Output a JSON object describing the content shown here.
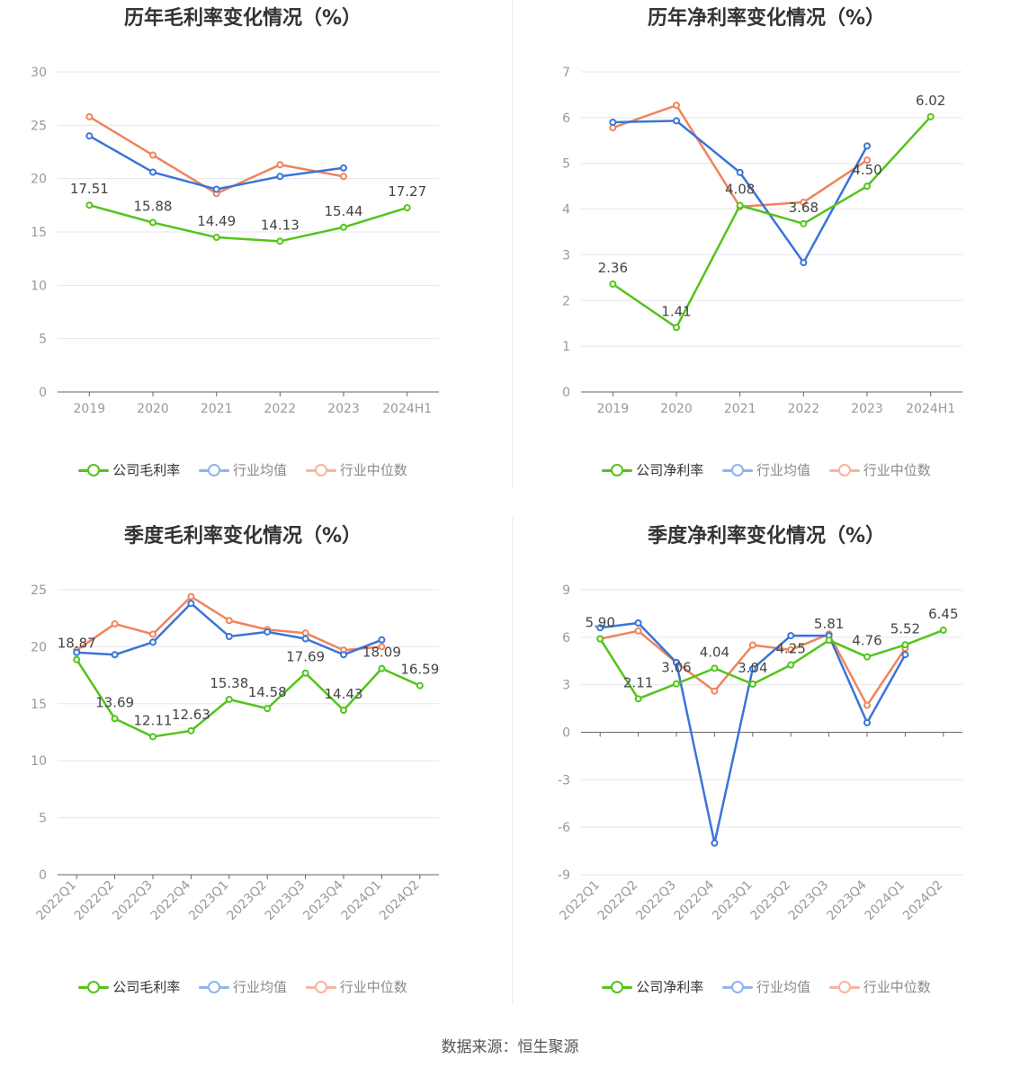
{
  "colors": {
    "company": "#52c41a",
    "avg": "#3a74d9",
    "median": "#f0845c",
    "grid": "#e4e6ee",
    "axis": "#666666",
    "tick": "#999999"
  },
  "source": "数据来源：恒生聚源",
  "chart_data": [
    {
      "type": "line",
      "title": "历年毛利率变化情况（%）",
      "categories": [
        "2019",
        "2020",
        "2021",
        "2022",
        "2023",
        "2024H1"
      ],
      "ylim": [
        0,
        30
      ],
      "yticks": [
        0,
        5,
        10,
        15,
        20,
        25,
        30
      ],
      "rotate_labels": false,
      "series": [
        {
          "name": "公司毛利率",
          "key": "company",
          "values": [
            17.51,
            15.88,
            14.49,
            14.13,
            15.44,
            17.27
          ],
          "labels": [
            "17.51",
            "15.88",
            "14.49",
            "14.13",
            "15.44",
            "17.27"
          ]
        },
        {
          "name": "行业均值",
          "key": "avg",
          "values": [
            24.0,
            20.6,
            19.0,
            20.2,
            21.0,
            null
          ]
        },
        {
          "name": "行业中位数",
          "key": "median",
          "values": [
            25.8,
            22.2,
            18.6,
            21.3,
            20.2,
            null
          ]
        }
      ]
    },
    {
      "type": "line",
      "title": "历年净利率变化情况（%）",
      "categories": [
        "2019",
        "2020",
        "2021",
        "2022",
        "2023",
        "2024H1"
      ],
      "ylim": [
        0,
        7
      ],
      "yticks": [
        0,
        1,
        2,
        3,
        4,
        5,
        6,
        7
      ],
      "rotate_labels": false,
      "series": [
        {
          "name": "公司净利率",
          "key": "company",
          "values": [
            2.36,
            1.41,
            4.08,
            3.68,
            4.5,
            6.02
          ],
          "labels": [
            "2.36",
            "1.41",
            "4.08",
            "3.68",
            "4.50",
            "6.02"
          ]
        },
        {
          "name": "行业均值",
          "key": "avg",
          "values": [
            5.9,
            5.93,
            4.8,
            2.83,
            5.38,
            null
          ]
        },
        {
          "name": "行业中位数",
          "key": "median",
          "values": [
            5.78,
            6.27,
            4.05,
            4.15,
            5.07,
            null
          ]
        }
      ]
    },
    {
      "type": "line",
      "title": "季度毛利率变化情况（%）",
      "categories": [
        "2022Q1",
        "2022Q2",
        "2022Q3",
        "2022Q4",
        "2023Q1",
        "2023Q2",
        "2023Q3",
        "2023Q4",
        "2024Q1",
        "2024Q2"
      ],
      "ylim": [
        0,
        25
      ],
      "yticks": [
        0,
        5,
        10,
        15,
        20,
        25
      ],
      "rotate_labels": true,
      "series": [
        {
          "name": "公司毛利率",
          "key": "company",
          "values": [
            18.87,
            13.69,
            12.11,
            12.63,
            15.38,
            14.58,
            17.69,
            14.43,
            18.09,
            16.59
          ],
          "labels": [
            "18.87",
            "13.69",
            "12.11",
            "12.63",
            "15.38",
            "14.58",
            "17.69",
            "14.43",
            "18.09",
            "16.59"
          ]
        },
        {
          "name": "行业均值",
          "key": "avg",
          "values": [
            19.5,
            19.3,
            20.4,
            23.8,
            20.9,
            21.3,
            20.7,
            19.3,
            20.6,
            null
          ]
        },
        {
          "name": "行业中位数",
          "key": "median",
          "values": [
            19.7,
            22.0,
            21.1,
            24.4,
            22.3,
            21.5,
            21.2,
            19.7,
            20.0,
            null
          ]
        }
      ]
    },
    {
      "type": "line",
      "title": "季度净利率变化情况（%）",
      "categories": [
        "2022Q1",
        "2022Q2",
        "2022Q3",
        "2022Q4",
        "2023Q1",
        "2023Q2",
        "2023Q3",
        "2023Q4",
        "2024Q1",
        "2024Q2"
      ],
      "ylim": [
        -9,
        9
      ],
      "yticks": [
        -9,
        -6,
        -3,
        0,
        3,
        6,
        9
      ],
      "rotate_labels": true,
      "series": [
        {
          "name": "公司净利率",
          "key": "company",
          "values": [
            5.9,
            2.11,
            3.06,
            4.04,
            3.04,
            4.25,
            5.81,
            4.76,
            5.52,
            6.45
          ],
          "labels": [
            "5.90",
            "2.11",
            "3.06",
            "4.04",
            "3.04",
            "4.25",
            "5.81",
            "4.76",
            "5.52",
            "6.45"
          ]
        },
        {
          "name": "行业均值",
          "key": "avg",
          "values": [
            6.6,
            6.9,
            4.4,
            -7.0,
            4.0,
            6.1,
            6.1,
            0.6,
            4.9,
            null
          ]
        },
        {
          "name": "行业中位数",
          "key": "median",
          "values": [
            5.9,
            6.4,
            4.4,
            2.6,
            5.5,
            5.2,
            6.2,
            1.7,
            5.3,
            null
          ]
        }
      ]
    }
  ]
}
